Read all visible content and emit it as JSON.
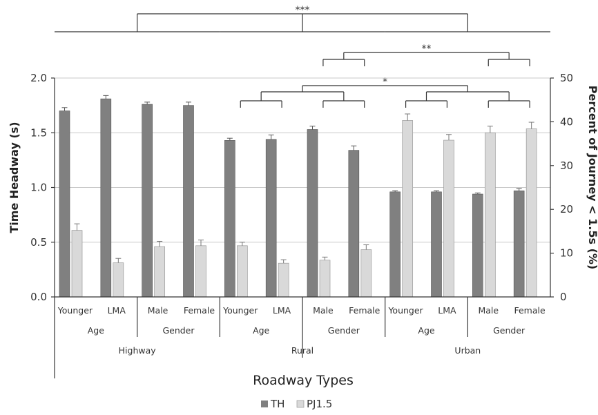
{
  "chart_data": {
    "type": "bar",
    "xlabel": "Roadway Types",
    "ylabel": "Time Headway (s)",
    "y2label": "Percent of Journey < 1.5s (%)",
    "ylim": [
      0,
      2.0
    ],
    "y2lim": [
      0,
      50
    ],
    "yticks": [
      "0.0",
      "0.5",
      "1.0",
      "1.5",
      "2.0"
    ],
    "y2ticks": [
      "0",
      "10",
      "20",
      "30",
      "40",
      "50"
    ],
    "grid": true,
    "legend_position": "bottom",
    "categories": [
      "Younger",
      "LMA",
      "Male",
      "Female",
      "Younger",
      "LMA",
      "Male",
      "Female",
      "Younger",
      "LMA",
      "Male",
      "Female"
    ],
    "factor_labels": [
      "Age",
      "Gender",
      "Age",
      "Gender",
      "Age",
      "Gender"
    ],
    "roadway_labels": [
      "Highway",
      "Rural",
      "Urban"
    ],
    "series": [
      {
        "name": "TH",
        "axis": "left",
        "color": "#808080",
        "values": [
          1.7,
          1.81,
          1.76,
          1.75,
          1.43,
          1.44,
          1.53,
          1.34,
          0.96,
          0.96,
          0.94,
          0.97
        ],
        "errors": [
          0.03,
          0.03,
          0.02,
          0.03,
          0.02,
          0.04,
          0.03,
          0.04,
          0.01,
          0.01,
          0.01,
          0.02
        ]
      },
      {
        "name": "PJ1.5",
        "axis": "right",
        "color": "#d9d9d9",
        "values": [
          15.2,
          7.8,
          11.5,
          11.7,
          11.7,
          7.7,
          8.4,
          10.8,
          40.3,
          35.8,
          37.5,
          38.4
        ],
        "errors": [
          1.5,
          1.0,
          1.2,
          1.3,
          0.8,
          0.8,
          0.7,
          1.1,
          1.5,
          1.3,
          1.5,
          1.5
        ]
      }
    ],
    "annotations": [
      "***",
      "**",
      "*"
    ]
  }
}
